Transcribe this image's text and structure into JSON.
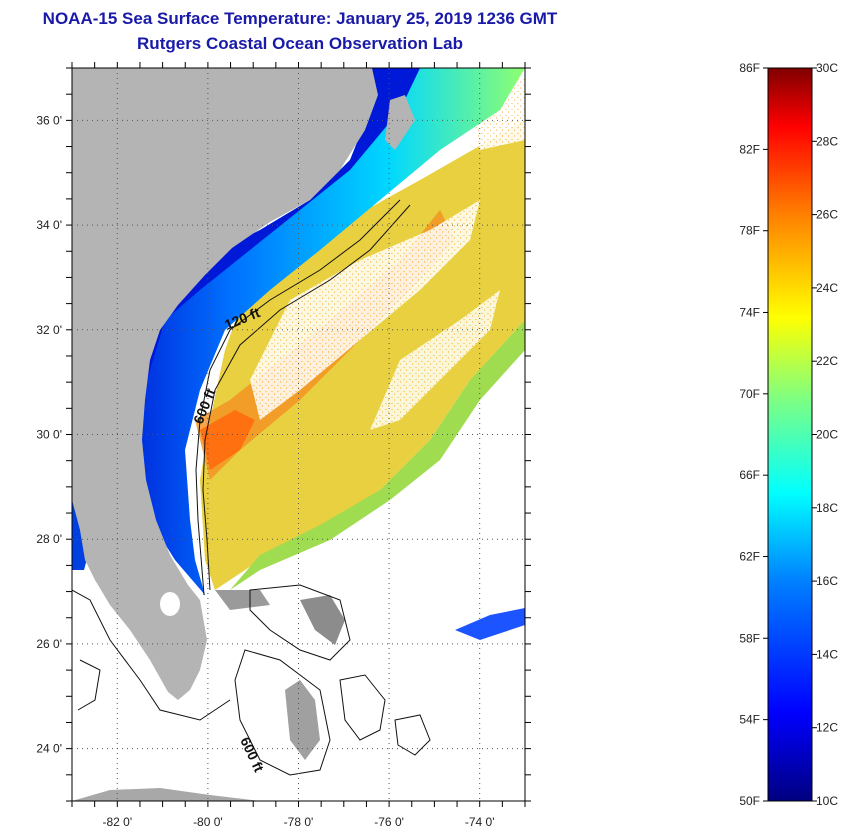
{
  "header": {
    "title_line1": "NOAA-15 Sea Surface Temperature:  January 25, 2019 1236 GMT",
    "title_line2": "Rutgers Coastal Ocean Observation Lab"
  },
  "map": {
    "lat_range": [
      23,
      37
    ],
    "lon_range": [
      -83,
      -73
    ],
    "lat_ticks": [
      {
        "value": 36,
        "label": "36 0'"
      },
      {
        "value": 34,
        "label": "34 0'"
      },
      {
        "value": 32,
        "label": "32 0'"
      },
      {
        "value": 30,
        "label": "30 0'"
      },
      {
        "value": 28,
        "label": "28 0'"
      },
      {
        "value": 26,
        "label": "26 0'"
      },
      {
        "value": 24,
        "label": "24 0'"
      }
    ],
    "lon_ticks": [
      {
        "value": -82,
        "label": "-82 0'"
      },
      {
        "value": -80,
        "label": "-80 0'"
      },
      {
        "value": -78,
        "label": "-78 0'"
      },
      {
        "value": -76,
        "label": "-76 0'"
      },
      {
        "value": -74,
        "label": "-74 0'"
      }
    ],
    "contour_labels": {
      "c120": "120 ft",
      "c600_north": "600 ft",
      "c600_south": "600 ft"
    },
    "colors": {
      "land": "#b4b4b4",
      "cloud": "#ffffff",
      "contour": "#111111"
    }
  },
  "colorbar": {
    "temp_min_c": 10,
    "temp_max_c": 30,
    "fahrenheit_labels": [
      {
        "value_c": 30,
        "label": "86F"
      },
      {
        "value_c": 27.78,
        "label": "82F"
      },
      {
        "value_c": 25.56,
        "label": "78F"
      },
      {
        "value_c": 23.33,
        "label": "74F"
      },
      {
        "value_c": 21.11,
        "label": "70F"
      },
      {
        "value_c": 18.89,
        "label": "66F"
      },
      {
        "value_c": 16.67,
        "label": "62F"
      },
      {
        "value_c": 14.44,
        "label": "58F"
      },
      {
        "value_c": 12.22,
        "label": "54F"
      },
      {
        "value_c": 10,
        "label": "50F"
      }
    ],
    "celsius_labels": [
      {
        "value_c": 30,
        "label": "30C"
      },
      {
        "value_c": 28,
        "label": "28C"
      },
      {
        "value_c": 26,
        "label": "26C"
      },
      {
        "value_c": 24,
        "label": "24C"
      },
      {
        "value_c": 22,
        "label": "22C"
      },
      {
        "value_c": 20,
        "label": "20C"
      },
      {
        "value_c": 18,
        "label": "18C"
      },
      {
        "value_c": 16,
        "label": "16C"
      },
      {
        "value_c": 14,
        "label": "14C"
      },
      {
        "value_c": 12,
        "label": "12C"
      },
      {
        "value_c": 10,
        "label": "10C"
      }
    ],
    "gradient_stops": [
      "#000080",
      "#0000ff",
      "#0080ff",
      "#00ffff",
      "#80ff80",
      "#ffff00",
      "#ff8000",
      "#ff0000",
      "#800000"
    ]
  }
}
